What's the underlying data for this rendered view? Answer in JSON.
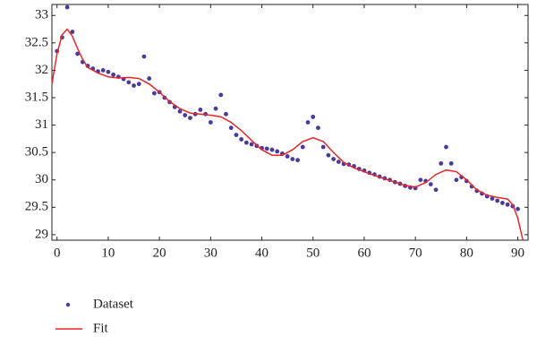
{
  "chart_data": {
    "type": "line",
    "legend": "bottom-left",
    "xlim": [
      -1,
      92
    ],
    "ylim": [
      28.9,
      33.2
    ],
    "xticks": [
      0,
      10,
      20,
      30,
      40,
      50,
      60,
      70,
      80,
      90
    ],
    "yticks": [
      29,
      29.5,
      30,
      30.5,
      31,
      31.5,
      32,
      32.5,
      33
    ],
    "series": [
      {
        "name": "Dataset",
        "color": "#4b3a9e",
        "marker": "dot",
        "x": [
          0,
          1,
          2,
          3,
          4,
          5,
          6,
          7,
          8,
          9,
          10,
          11,
          12,
          13,
          14,
          15,
          16,
          17,
          18,
          19,
          20,
          21,
          22,
          23,
          24,
          25,
          26,
          27,
          28,
          29,
          30,
          31,
          32,
          33,
          34,
          35,
          36,
          37,
          38,
          39,
          40,
          41,
          42,
          43,
          44,
          45,
          46,
          47,
          48,
          49,
          50,
          51,
          52,
          53,
          54,
          55,
          56,
          57,
          58,
          59,
          60,
          61,
          62,
          63,
          64,
          65,
          66,
          67,
          68,
          69,
          70,
          71,
          72,
          73,
          74,
          75,
          76,
          77,
          78,
          79,
          80,
          81,
          82,
          83,
          84,
          85,
          86,
          87,
          88,
          89,
          90
        ],
        "values": [
          32.35,
          32.6,
          33.15,
          32.7,
          32.3,
          32.15,
          32.08,
          32.03,
          31.98,
          32.0,
          31.97,
          31.92,
          31.88,
          31.84,
          31.78,
          31.72,
          31.75,
          32.25,
          31.85,
          31.58,
          31.6,
          31.5,
          31.42,
          31.33,
          31.25,
          31.18,
          31.13,
          31.2,
          31.28,
          31.2,
          31.05,
          31.3,
          31.55,
          31.2,
          30.95,
          30.82,
          30.74,
          30.68,
          30.65,
          30.62,
          30.58,
          30.57,
          30.55,
          30.52,
          30.48,
          30.43,
          30.38,
          30.36,
          30.6,
          31.05,
          31.15,
          30.95,
          30.6,
          30.45,
          30.38,
          30.33,
          30.29,
          30.28,
          30.25,
          30.2,
          30.17,
          30.13,
          30.1,
          30.06,
          30.03,
          30.0,
          29.96,
          29.93,
          29.89,
          29.86,
          29.85,
          30.0,
          29.98,
          29.92,
          29.82,
          30.3,
          30.6,
          30.3,
          30.0,
          30.05,
          29.98,
          29.88,
          29.8,
          29.75,
          29.7,
          29.66,
          29.62,
          29.58,
          29.55,
          29.52,
          29.47
        ]
      },
      {
        "name": "Fit",
        "color": "#e8262a",
        "marker": "line",
        "x": [
          -1,
          0,
          1,
          2,
          3,
          4,
          5,
          6,
          8,
          10,
          12,
          14,
          16,
          18,
          20,
          22,
          24,
          26,
          28,
          30,
          32,
          34,
          36,
          38,
          40,
          42,
          44,
          46,
          48,
          50,
          52,
          54,
          56,
          58,
          60,
          62,
          64,
          66,
          68,
          70,
          72,
          74,
          76,
          78,
          80,
          82,
          84,
          86,
          88,
          89,
          90,
          91
        ],
        "values": [
          31.75,
          32.3,
          32.65,
          32.75,
          32.62,
          32.4,
          32.2,
          32.05,
          31.95,
          31.88,
          31.86,
          31.87,
          31.85,
          31.75,
          31.6,
          31.43,
          31.3,
          31.22,
          31.2,
          31.18,
          31.15,
          31.05,
          30.9,
          30.72,
          30.55,
          30.45,
          30.45,
          30.55,
          30.7,
          30.77,
          30.7,
          30.5,
          30.32,
          30.22,
          30.15,
          30.08,
          30.02,
          29.96,
          29.9,
          29.87,
          29.95,
          30.1,
          30.18,
          30.15,
          30.0,
          29.82,
          29.72,
          29.68,
          29.65,
          29.55,
          29.3,
          28.9
        ]
      }
    ]
  }
}
